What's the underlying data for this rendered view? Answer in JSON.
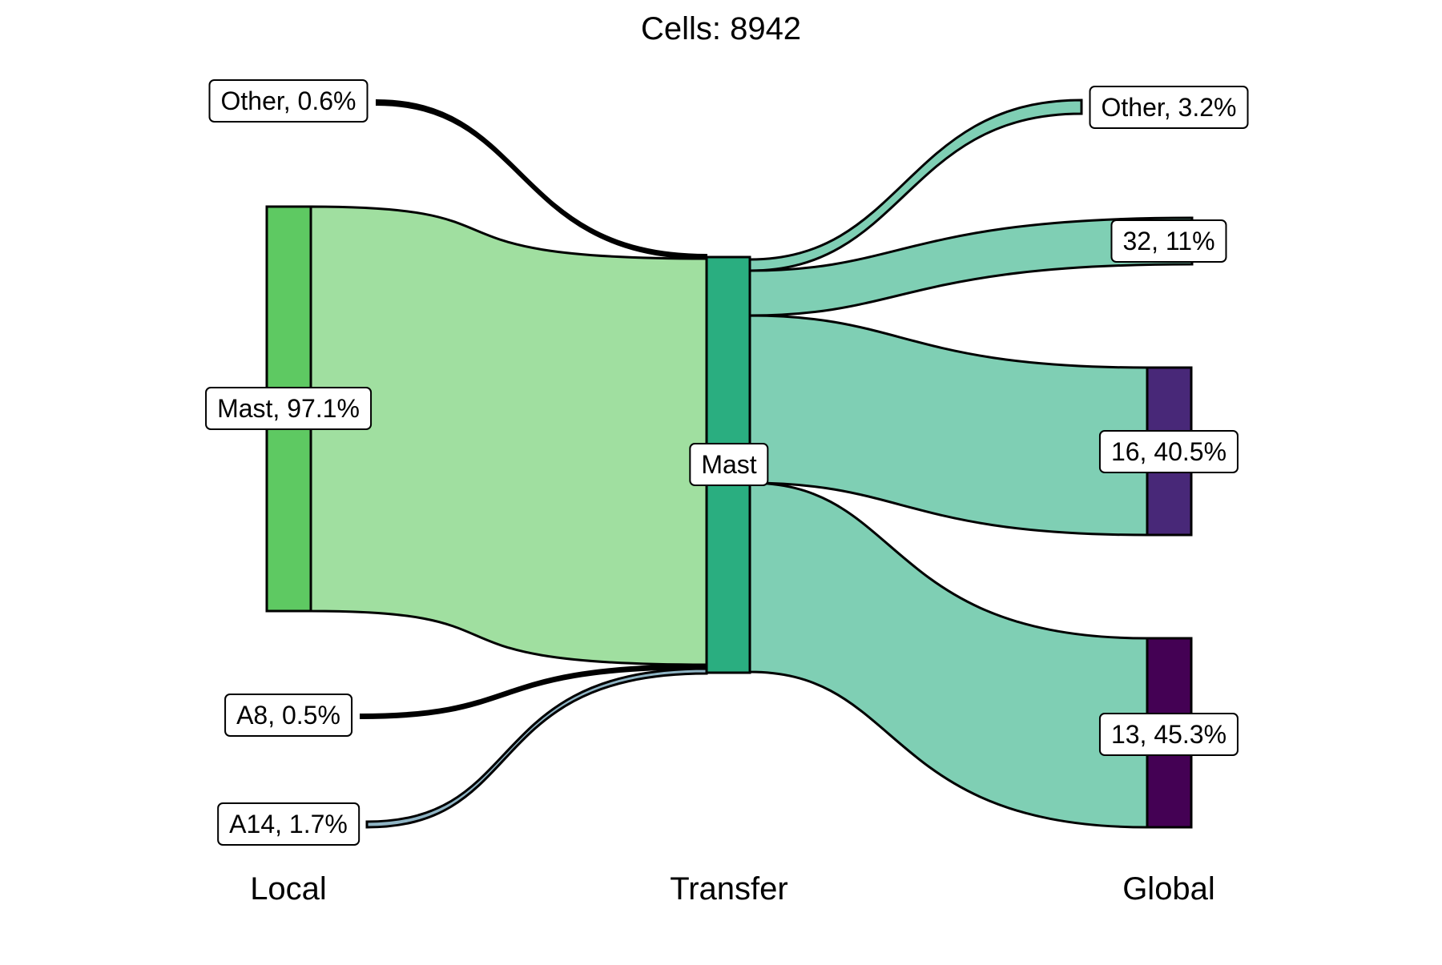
{
  "title": "Cells:  8942",
  "axes": [
    {
      "id": "local",
      "label": "Local"
    },
    {
      "id": "transfer",
      "label": "Transfer"
    },
    {
      "id": "global",
      "label": "Global"
    }
  ],
  "colors": {
    "local_mast": "#5ec962",
    "local_mast_flow": "#a0dfa0",
    "transfer_mast": "#2aae80",
    "transfer_flow": "#7fcfb4",
    "a14_flow": "#8fb4c4",
    "global_16": "#482878",
    "global_13": "#440154"
  },
  "nodes": {
    "local_other": {
      "label": "Other, 0.6%"
    },
    "local_mast": {
      "label": "Mast, 97.1%"
    },
    "local_a8": {
      "label": "A8, 0.5%"
    },
    "local_a14": {
      "label": "A14, 1.7%"
    },
    "transfer_mast": {
      "label": "Mast"
    },
    "global_other": {
      "label": "Other, 3.2%"
    },
    "global_32": {
      "label": "32, 11%"
    },
    "global_16": {
      "label": "16, 40.5%"
    },
    "global_13": {
      "label": "13, 45.3%"
    }
  }
}
